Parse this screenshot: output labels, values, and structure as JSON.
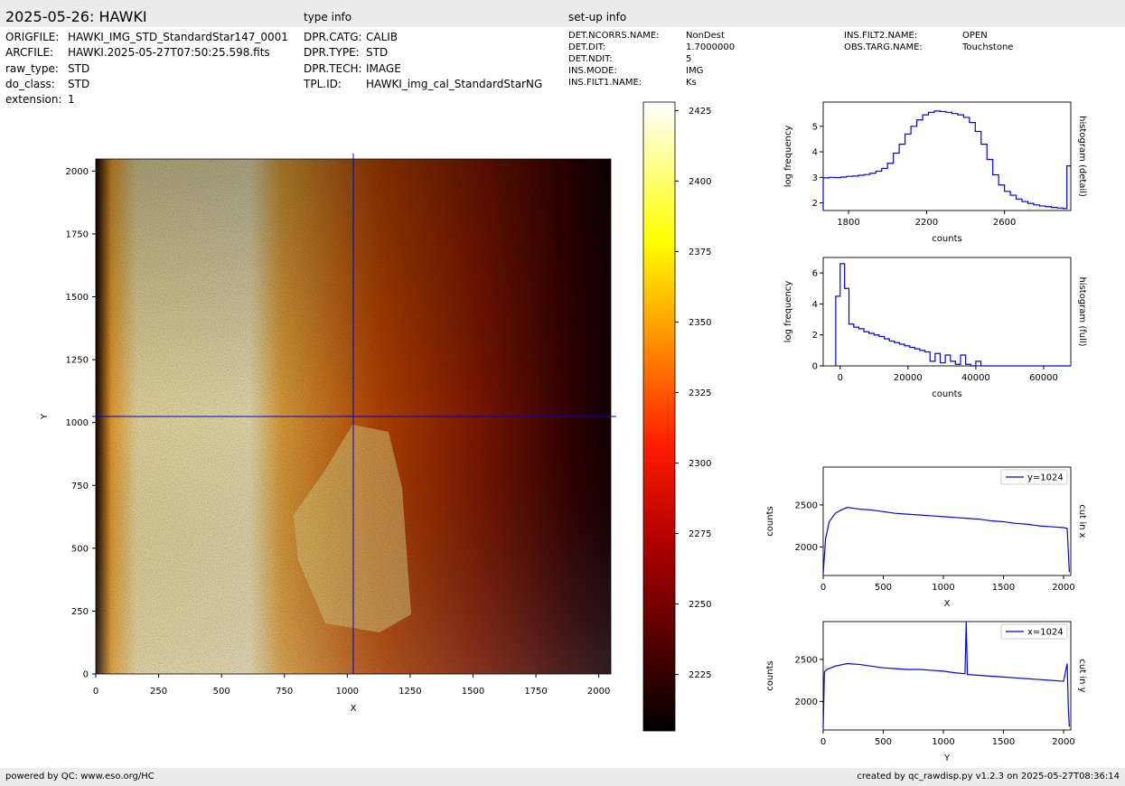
{
  "header": {
    "title": "2025-05-26: HAWKI",
    "type_info_label": "type info",
    "setup_info_label": "set-up info"
  },
  "file_info": [
    {
      "key": "ORIGFILE:",
      "value": "HAWKI_IMG_STD_StandardStar147_0001"
    },
    {
      "key": "ARCFILE:",
      "value": "HAWKI.2025-05-27T07:50:25.598.fits"
    },
    {
      "key": "raw_type:",
      "value": "STD"
    },
    {
      "key": "do_class:",
      "value": "STD"
    },
    {
      "key": "extension:",
      "value": "1"
    }
  ],
  "type_info": [
    {
      "key": "DPR.CATG:",
      "value": "CALIB"
    },
    {
      "key": "DPR.TYPE:",
      "value": "STD"
    },
    {
      "key": "DPR.TECH:",
      "value": "IMAGE"
    },
    {
      "key": "TPL.ID:",
      "value": "HAWKI_img_cal_StandardStarNG"
    }
  ],
  "setup_info_col1": [
    {
      "key": "DET.NCORRS.NAME:",
      "value": "NonDest"
    },
    {
      "key": "DET.DIT:",
      "value": "1.7000000"
    },
    {
      "key": "DET.NDIT:",
      "value": "5"
    },
    {
      "key": "INS.MODE:",
      "value": "IMG"
    },
    {
      "key": "INS.FILT1.NAME:",
      "value": "Ks"
    }
  ],
  "setup_info_col2": [
    {
      "key": "INS.FILT2.NAME:",
      "value": "OPEN"
    },
    {
      "key": "OBS.TARG.NAME:",
      "value": "Touchstone"
    }
  ],
  "footer": {
    "left": "powered by QC: www.eso.org/HC",
    "right": "created by qc_rawdisp.py v1.2.3 on 2025-05-27T08:36:14"
  },
  "colors": {
    "trace": "#0000ff",
    "crosshair": "#0000cc",
    "band": "#ececec"
  },
  "chart_data": [
    {
      "type": "heatmap",
      "name": "image",
      "xlabel": "X",
      "ylabel": "Y",
      "xlim": [
        0,
        2048
      ],
      "ylim": [
        0,
        2048
      ],
      "xticks": [
        0,
        250,
        500,
        750,
        1000,
        1250,
        1500,
        1750,
        2000
      ],
      "yticks": [
        0,
        250,
        500,
        750,
        1000,
        1250,
        1500,
        1750,
        2000
      ],
      "crosshair": {
        "x": 1024,
        "y": 1024
      },
      "colormap": "hot",
      "colorbar": {
        "range": [
          2205,
          2428
        ],
        "ticks": [
          2225,
          2250,
          2275,
          2300,
          2325,
          2350,
          2375,
          2400,
          2425
        ]
      }
    },
    {
      "type": "line",
      "name": "histogram-detail",
      "xlabel": "counts",
      "ylabel": "log frequency",
      "side_label": "histogram (detail)",
      "xlim": [
        1670,
        2940
      ],
      "ylim": [
        1.7,
        5.95
      ],
      "xticks": [
        1800,
        2200,
        2600
      ],
      "yticks": [
        2,
        3,
        4,
        5
      ],
      "x": [
        1670,
        1700,
        1730,
        1760,
        1790,
        1820,
        1850,
        1880,
        1910,
        1940,
        1970,
        2000,
        2030,
        2060,
        2090,
        2120,
        2150,
        2180,
        2210,
        2240,
        2270,
        2300,
        2330,
        2360,
        2390,
        2420,
        2450,
        2480,
        2510,
        2540,
        2570,
        2600,
        2630,
        2660,
        2690,
        2720,
        2750,
        2780,
        2810,
        2840,
        2870,
        2900,
        2920
      ],
      "y": [
        2.98,
        3.0,
        2.99,
        3.01,
        3.04,
        3.05,
        3.08,
        3.11,
        3.16,
        3.24,
        3.35,
        3.55,
        3.95,
        4.3,
        4.7,
        5.0,
        5.25,
        5.45,
        5.55,
        5.6,
        5.58,
        5.55,
        5.5,
        5.45,
        5.35,
        5.15,
        4.8,
        4.3,
        3.7,
        3.1,
        2.7,
        2.45,
        2.3,
        2.15,
        2.05,
        1.98,
        1.92,
        1.88,
        1.85,
        1.82,
        1.8,
        1.78,
        3.45
      ]
    },
    {
      "type": "line",
      "name": "histogram-full",
      "xlabel": "counts",
      "ylabel": "log frequency",
      "side_label": "histogram (full)",
      "xlim": [
        -5000,
        68000
      ],
      "ylim": [
        0,
        7
      ],
      "xticks": [
        0,
        20000,
        40000,
        60000
      ],
      "yticks": [
        0,
        2,
        4,
        6
      ],
      "x": [
        -1300,
        0,
        1300,
        2600,
        4000,
        5500,
        7000,
        8500,
        10000,
        11500,
        13000,
        14500,
        16000,
        17500,
        19000,
        20500,
        22000,
        23500,
        25000,
        26500,
        28000,
        29500,
        31000,
        32500,
        34000,
        35500,
        37000,
        38500,
        40000,
        41500,
        43000,
        45000,
        50000,
        55000,
        60000,
        65000,
        67000
      ],
      "y": [
        4.5,
        6.6,
        5.0,
        2.7,
        2.5,
        2.4,
        2.2,
        2.1,
        2.0,
        1.9,
        1.75,
        1.6,
        1.5,
        1.4,
        1.3,
        1.2,
        1.1,
        1.0,
        0.9,
        0.3,
        0.8,
        0.2,
        0.7,
        0.3,
        0.1,
        0.7,
        0.1,
        0.0,
        0.3,
        0.0,
        0.0,
        0.0,
        0.0,
        0.0,
        0.0,
        0.0,
        0.0
      ]
    },
    {
      "type": "line",
      "name": "cut-in-x",
      "xlabel": "X",
      "ylabel": "counts",
      "side_label": "cut in x",
      "legend": "y=1024",
      "xlim": [
        0,
        2060
      ],
      "ylim": [
        1660,
        2950
      ],
      "xticks": [
        0,
        500,
        1000,
        1500,
        2000
      ],
      "yticks": [
        2000,
        2500
      ],
      "x": [
        0,
        20,
        50,
        100,
        150,
        200,
        250,
        300,
        400,
        500,
        600,
        700,
        800,
        900,
        1000,
        1100,
        1200,
        1300,
        1400,
        1500,
        1600,
        1700,
        1800,
        1900,
        2000,
        2030,
        2048
      ],
      "y": [
        1680,
        2100,
        2300,
        2400,
        2440,
        2470,
        2460,
        2450,
        2440,
        2420,
        2400,
        2390,
        2380,
        2370,
        2360,
        2350,
        2340,
        2330,
        2310,
        2300,
        2280,
        2270,
        2250,
        2240,
        2230,
        2220,
        1700
      ]
    },
    {
      "type": "line",
      "name": "cut-in-y",
      "xlabel": "Y",
      "ylabel": "counts",
      "side_label": "cut in y",
      "legend": "x=1024",
      "xlim": [
        0,
        2060
      ],
      "ylim": [
        1660,
        2950
      ],
      "xticks": [
        0,
        500,
        1000,
        1500,
        2000
      ],
      "yticks": [
        2000,
        2500
      ],
      "x": [
        0,
        10,
        30,
        100,
        200,
        300,
        400,
        500,
        600,
        700,
        800,
        900,
        1000,
        1100,
        1180,
        1190,
        1200,
        1300,
        1400,
        1500,
        1600,
        1700,
        1800,
        1900,
        2000,
        2030,
        2040,
        2048
      ],
      "y": [
        1680,
        2350,
        2380,
        2420,
        2450,
        2440,
        2420,
        2400,
        2390,
        2380,
        2380,
        2370,
        2360,
        2340,
        2330,
        2950,
        2320,
        2310,
        2300,
        2290,
        2280,
        2270,
        2260,
        2250,
        2240,
        2450,
        1900,
        1700
      ]
    }
  ]
}
